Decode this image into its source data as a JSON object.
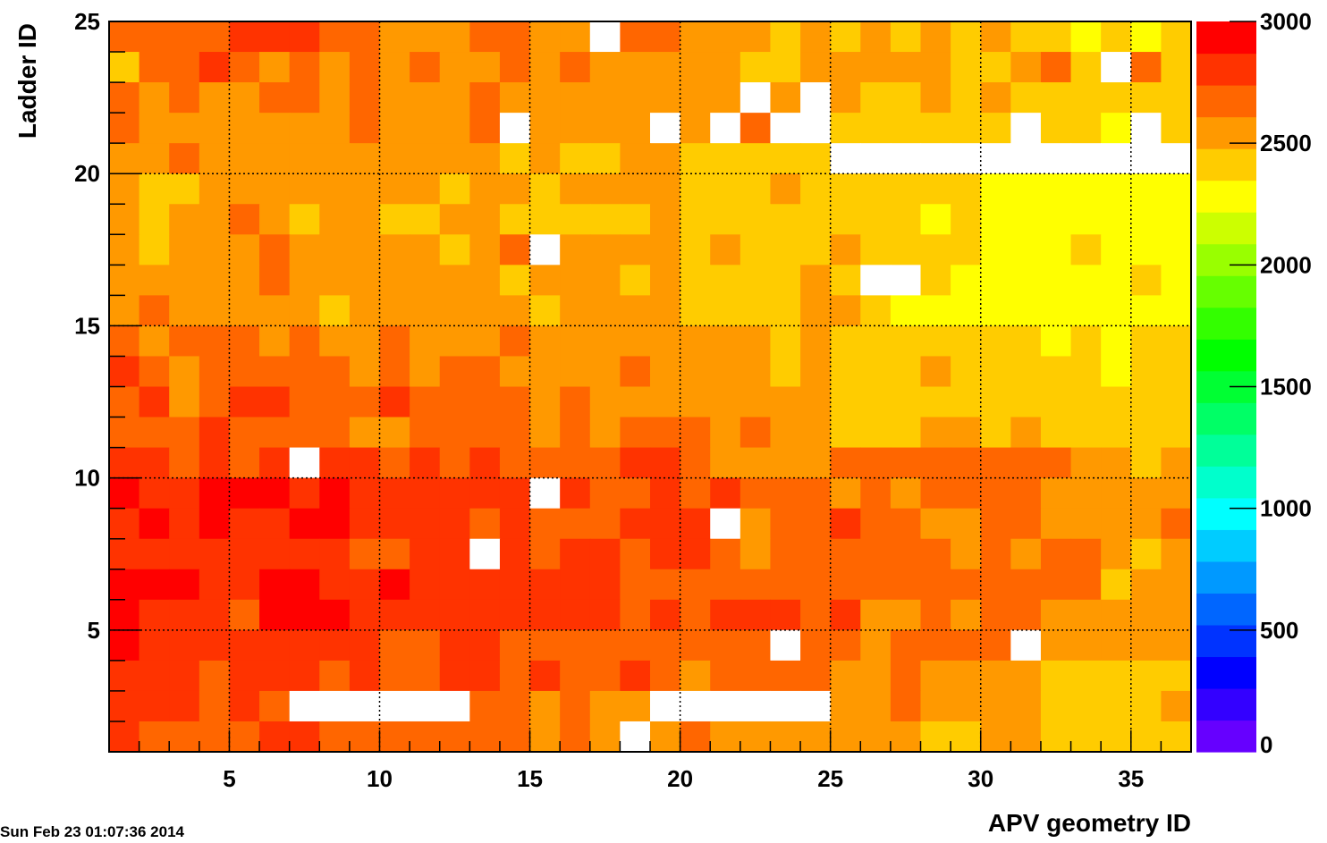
{
  "timestamp": "Sun Feb 23 01:07:36 2014",
  "chart_data": {
    "type": "heatmap",
    "title": "",
    "xlabel": "APV geometry ID",
    "ylabel": "Ladder ID",
    "xlim": [
      1,
      37
    ],
    "ylim": [
      1,
      25
    ],
    "zlim": [
      0,
      3000
    ],
    "x_ticks": [
      5,
      10,
      15,
      20,
      25,
      30,
      35
    ],
    "y_ticks": [
      5,
      10,
      15,
      20,
      25
    ],
    "colorbar_ticks": [
      0,
      500,
      1000,
      1500,
      2000,
      2500,
      3000
    ],
    "grid": true,
    "legend": "colorbar right",
    "colors": {
      "empty": "#ffffff",
      "palette": [
        "#6600ff",
        "#3300ff",
        "#0000ff",
        "#0033ff",
        "#0066ff",
        "#0099ff",
        "#00ccff",
        "#00ffff",
        "#00ffcc",
        "#00ff99",
        "#00ff66",
        "#00ff33",
        "#00ff00",
        "#33ff00",
        "#66ff00",
        "#99ff00",
        "#ccff00",
        "#ffff00",
        "#ffcc00",
        "#ff9900",
        "#ff6600",
        "#ff3300",
        "#ff0000"
      ]
    },
    "x_bins": [
      1,
      2,
      3,
      4,
      5,
      6,
      7,
      8,
      9,
      10,
      11,
      12,
      13,
      14,
      15,
      16,
      17,
      18,
      19,
      20,
      21,
      22,
      23,
      24,
      25,
      26,
      27,
      28,
      29,
      30,
      31,
      32,
      33,
      34,
      35,
      36
    ],
    "y_bins_top_to_bottom": [
      24,
      23,
      22,
      21,
      20,
      19,
      18,
      17,
      16,
      15,
      14,
      13,
      12,
      11,
      10,
      9,
      8,
      7,
      6,
      5,
      4,
      3,
      2,
      1
    ],
    "values": [
      [
        2700,
        2700,
        2700,
        2700,
        2850,
        2850,
        2850,
        2700,
        2700,
        2550,
        2550,
        2550,
        2700,
        2700,
        2550,
        2550,
        null,
        2700,
        2700,
        2550,
        2550,
        2550,
        2400,
        2550,
        2400,
        2550,
        2400,
        2550,
        2400,
        2550,
        2400,
        2400,
        2250,
        2400,
        2250,
        2400
      ],
      [
        2400,
        2700,
        2700,
        2850,
        2700,
        2550,
        2700,
        2550,
        2700,
        2550,
        2700,
        2550,
        2550,
        2700,
        2550,
        2700,
        2550,
        2550,
        2550,
        2550,
        2550,
        2400,
        2400,
        2550,
        2550,
        2550,
        2550,
        2550,
        2400,
        2400,
        2550,
        2700,
        2400,
        null,
        2700,
        2400
      ],
      [
        2700,
        2550,
        2700,
        2550,
        2550,
        2700,
        2700,
        2550,
        2700,
        2550,
        2550,
        2550,
        2700,
        2550,
        2550,
        2550,
        2550,
        2550,
        2550,
        2550,
        2550,
        null,
        2550,
        null,
        2550,
        2400,
        2400,
        2550,
        2400,
        2550,
        2400,
        2400,
        2400,
        2400,
        2400,
        2400
      ],
      [
        2700,
        2550,
        2550,
        2550,
        2550,
        2550,
        2550,
        2550,
        2700,
        2550,
        2550,
        2550,
        2700,
        null,
        2550,
        2550,
        2550,
        2550,
        null,
        2550,
        null,
        2700,
        null,
        null,
        2400,
        2400,
        2400,
        2400,
        2400,
        2400,
        null,
        2400,
        2400,
        2250,
        null,
        2400
      ],
      [
        2550,
        2550,
        2700,
        2550,
        2550,
        2550,
        2550,
        2550,
        2550,
        2550,
        2550,
        2550,
        2550,
        2400,
        2550,
        2400,
        2400,
        2550,
        2550,
        2400,
        2400,
        2400,
        2400,
        2400,
        null,
        null,
        null,
        null,
        null,
        null,
        null,
        null,
        null,
        null,
        null,
        null
      ],
      [
        2550,
        2400,
        2400,
        2550,
        2550,
        2550,
        2550,
        2550,
        2550,
        2550,
        2550,
        2400,
        2550,
        2550,
        2400,
        2550,
        2550,
        2550,
        2550,
        2400,
        2400,
        2400,
        2550,
        2400,
        2400,
        2400,
        2400,
        2400,
        2400,
        2250,
        2250,
        2250,
        2250,
        2250,
        2250,
        2250
      ],
      [
        2550,
        2400,
        2550,
        2550,
        2700,
        2550,
        2400,
        2550,
        2550,
        2400,
        2400,
        2550,
        2550,
        2400,
        2400,
        2400,
        2400,
        2400,
        2550,
        2400,
        2400,
        2400,
        2400,
        2400,
        2400,
        2400,
        2400,
        2250,
        2400,
        2250,
        2250,
        2250,
        2250,
        2250,
        2250,
        2250
      ],
      [
        2550,
        2400,
        2550,
        2550,
        2550,
        2700,
        2550,
        2550,
        2550,
        2550,
        2550,
        2400,
        2550,
        2700,
        null,
        2550,
        2550,
        2550,
        2550,
        2400,
        2550,
        2400,
        2400,
        2400,
        2550,
        2400,
        2400,
        2400,
        2400,
        2250,
        2250,
        2250,
        2400,
        2250,
        2250,
        2250
      ],
      [
        2550,
        2550,
        2550,
        2550,
        2550,
        2700,
        2550,
        2550,
        2550,
        2550,
        2550,
        2550,
        2550,
        2400,
        2550,
        2550,
        2550,
        2400,
        2550,
        2400,
        2400,
        2400,
        2400,
        2550,
        2400,
        null,
        null,
        2400,
        2250,
        2250,
        2250,
        2250,
        2250,
        2250,
        2400,
        2250
      ],
      [
        2550,
        2700,
        2550,
        2550,
        2550,
        2550,
        2550,
        2400,
        2550,
        2550,
        2550,
        2550,
        2550,
        2550,
        2400,
        2550,
        2550,
        2550,
        2550,
        2400,
        2400,
        2400,
        2400,
        2550,
        2550,
        2400,
        2250,
        2250,
        2250,
        2250,
        2250,
        2250,
        2250,
        2250,
        2250,
        2250
      ],
      [
        2700,
        2550,
        2700,
        2700,
        2700,
        2550,
        2700,
        2550,
        2550,
        2700,
        2550,
        2550,
        2550,
        2700,
        2550,
        2550,
        2550,
        2550,
        2550,
        2550,
        2550,
        2550,
        2400,
        2550,
        2400,
        2400,
        2400,
        2400,
        2400,
        2400,
        2400,
        2250,
        2400,
        2250,
        2400,
        2400
      ],
      [
        2850,
        2700,
        2550,
        2700,
        2700,
        2700,
        2700,
        2700,
        2550,
        2700,
        2550,
        2700,
        2700,
        2550,
        2550,
        2550,
        2550,
        2700,
        2550,
        2550,
        2550,
        2550,
        2400,
        2550,
        2400,
        2400,
        2400,
        2550,
        2400,
        2400,
        2400,
        2400,
        2400,
        2250,
        2400,
        2400
      ],
      [
        2700,
        2850,
        2550,
        2700,
        2850,
        2850,
        2700,
        2700,
        2700,
        2850,
        2700,
        2700,
        2700,
        2700,
        2550,
        2700,
        2550,
        2550,
        2550,
        2550,
        2550,
        2550,
        2550,
        2550,
        2400,
        2400,
        2400,
        2400,
        2400,
        2400,
        2400,
        2400,
        2400,
        2400,
        2400,
        2400
      ],
      [
        2700,
        2700,
        2700,
        2850,
        2700,
        2700,
        2700,
        2700,
        2550,
        2550,
        2700,
        2700,
        2700,
        2700,
        2550,
        2700,
        2550,
        2700,
        2700,
        2700,
        2550,
        2700,
        2550,
        2550,
        2400,
        2400,
        2400,
        2550,
        2550,
        2400,
        2550,
        2400,
        2400,
        2400,
        2400,
        2400
      ],
      [
        2850,
        2850,
        2700,
        2850,
        2700,
        2850,
        null,
        2850,
        2850,
        2700,
        2850,
        2700,
        2850,
        2700,
        2700,
        2700,
        2700,
        2850,
        2850,
        2700,
        2550,
        2550,
        2550,
        2550,
        2700,
        2700,
        2700,
        2700,
        2700,
        2700,
        2700,
        2700,
        2550,
        2550,
        2400,
        2550
      ],
      [
        3000,
        2850,
        2850,
        3000,
        3000,
        3000,
        2850,
        3000,
        2850,
        2850,
        2850,
        2850,
        2850,
        2850,
        null,
        2850,
        2700,
        2700,
        2850,
        2700,
        2850,
        2700,
        2700,
        2700,
        2550,
        2700,
        2550,
        2700,
        2700,
        2700,
        2700,
        2550,
        2550,
        2550,
        2550,
        2550
      ],
      [
        2850,
        3000,
        2850,
        3000,
        2850,
        2850,
        3000,
        3000,
        2850,
        2850,
        2850,
        2850,
        2700,
        2850,
        2700,
        2700,
        2700,
        2850,
        2850,
        2850,
        null,
        2550,
        2700,
        2700,
        2850,
        2700,
        2700,
        2550,
        2550,
        2700,
        2700,
        2550,
        2550,
        2550,
        2550,
        2700
      ],
      [
        2850,
        2850,
        2850,
        2850,
        2850,
        2850,
        2850,
        2850,
        2700,
        2700,
        2850,
        2850,
        null,
        2850,
        2700,
        2850,
        2850,
        2700,
        2850,
        2850,
        2700,
        2550,
        2700,
        2700,
        2700,
        2700,
        2700,
        2700,
        2550,
        2700,
        2550,
        2700,
        2700,
        2550,
        2400,
        2550
      ],
      [
        3000,
        3000,
        3000,
        2850,
        2850,
        3000,
        3000,
        2850,
        2850,
        3000,
        2850,
        2850,
        2850,
        2850,
        2850,
        2850,
        2850,
        2700,
        2700,
        2700,
        2700,
        2700,
        2700,
        2700,
        2700,
        2700,
        2700,
        2700,
        2700,
        2700,
        2700,
        2700,
        2700,
        2400,
        2550,
        2550
      ],
      [
        3000,
        2850,
        2850,
        2850,
        2700,
        3000,
        3000,
        3000,
        2850,
        2850,
        2850,
        2850,
        2850,
        2850,
        2850,
        2850,
        2850,
        2700,
        2850,
        2700,
        2850,
        2850,
        2850,
        2700,
        2850,
        2550,
        2550,
        2700,
        2550,
        2700,
        2700,
        2550,
        2550,
        2550,
        2550,
        2550
      ],
      [
        3000,
        2850,
        2850,
        2850,
        2850,
        2850,
        2850,
        2850,
        2850,
        2700,
        2700,
        2850,
        2850,
        2700,
        2700,
        2700,
        2700,
        2700,
        2700,
        2700,
        2700,
        2700,
        null,
        2700,
        2700,
        2550,
        2700,
        2700,
        2700,
        2700,
        null,
        2550,
        2550,
        2550,
        2550,
        2550
      ],
      [
        2850,
        2850,
        2850,
        2700,
        2850,
        2850,
        2850,
        2700,
        2850,
        2700,
        2700,
        2850,
        2850,
        2700,
        2850,
        2700,
        2700,
        2850,
        2700,
        2550,
        2700,
        2700,
        2700,
        2700,
        2550,
        2550,
        2700,
        2550,
        2550,
        2550,
        2550,
        2400,
        2400,
        2400,
        2400,
        2400
      ],
      [
        2850,
        2850,
        2850,
        2700,
        2850,
        2700,
        null,
        null,
        null,
        null,
        null,
        null,
        2700,
        2700,
        2550,
        2700,
        2550,
        2550,
        null,
        null,
        null,
        null,
        null,
        null,
        2550,
        2550,
        2700,
        2550,
        2550,
        2550,
        2550,
        2400,
        2400,
        2400,
        2400,
        2550
      ],
      [
        2850,
        2700,
        2700,
        2700,
        2700,
        2850,
        2850,
        2700,
        2700,
        2700,
        2700,
        2700,
        2700,
        2700,
        2550,
        2700,
        2550,
        null,
        2550,
        2700,
        2550,
        2550,
        2550,
        2550,
        2550,
        2550,
        2550,
        2400,
        2400,
        2550,
        2550,
        2400,
        2400,
        2400,
        2400,
        2400
      ]
    ]
  }
}
